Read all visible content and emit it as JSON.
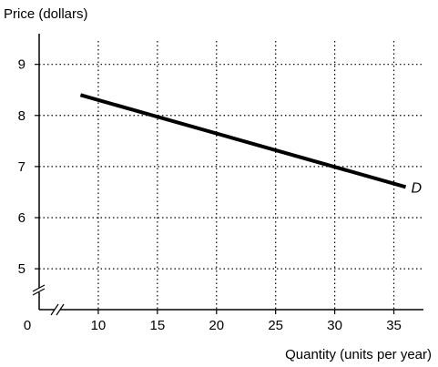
{
  "chart_data": {
    "type": "line",
    "xlabel": "Quantity (units per year)",
    "ylabel": "Price (dollars)",
    "origin_label": "0",
    "x_ticks": [
      10,
      15,
      20,
      25,
      30,
      35
    ],
    "y_ticks": [
      5,
      6,
      7,
      8,
      9
    ],
    "xlim": [
      5,
      37.5
    ],
    "ylim": [
      4.2,
      9.6
    ],
    "grid": true,
    "axis_breaks": true,
    "series": [
      {
        "name": "D",
        "x": [
          8.5,
          36
        ],
        "y": [
          8.4,
          6.6
        ]
      }
    ]
  }
}
